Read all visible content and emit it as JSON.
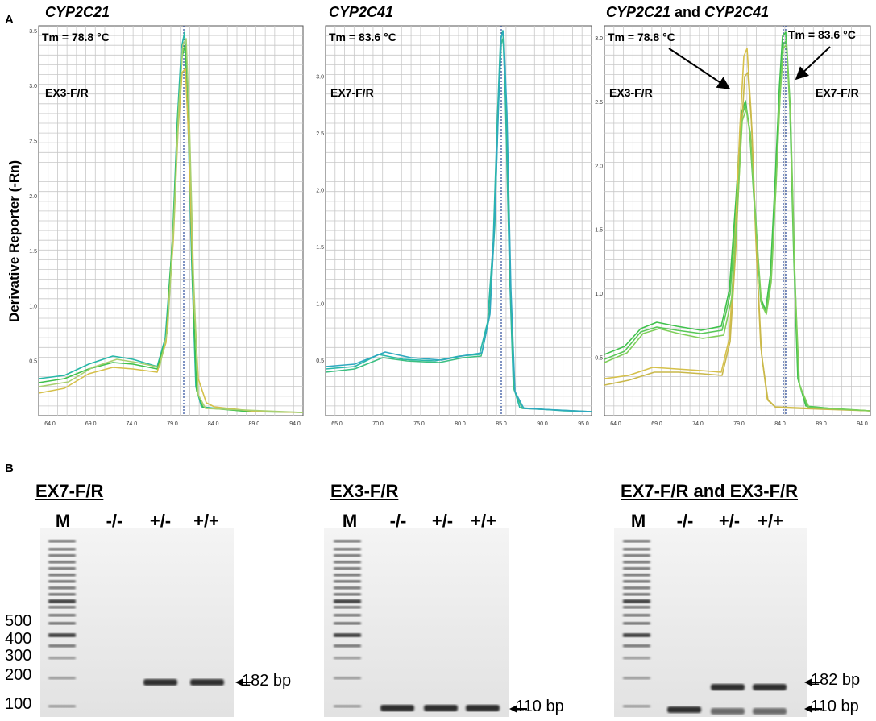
{
  "panel_a_label": "A",
  "panel_b_label": "B",
  "y_axis_label": "Derivative Reporter (-Rn)",
  "colors": {
    "teal": "#27b8a8",
    "green": "#3fc14c",
    "yellow": "#d5c04a",
    "vline": "#2a4a9a",
    "grid": "#c8c8c8"
  },
  "melt": [
    {
      "title": "CYP2C21",
      "tm_labels": [
        "Tm = 78.8 °C"
      ],
      "primer_left": "EX3-F/R",
      "primer_right": "",
      "x_ticks": [
        "64.0",
        "69.0",
        "74.0",
        "79.0",
        "84.0",
        "89.0",
        "94.0"
      ],
      "y_ticks": [
        "0.5",
        "1.0",
        "1.5",
        "2.0",
        "2.5",
        "3.0",
        "3.5"
      ]
    },
    {
      "title": "CYP2C41",
      "tm_labels": [
        "Tm = 83.6 °C"
      ],
      "primer_left": "EX7-F/R",
      "primer_right": "",
      "x_ticks": [
        "65.0",
        "70.0",
        "75.0",
        "80.0",
        "85.0",
        "90.0",
        "95.0"
      ],
      "y_ticks": [
        "0.5",
        "1.0",
        "1.5",
        "2.0",
        "2.5",
        "3.0"
      ]
    },
    {
      "title_a": "CYP2C21",
      "title_and": " and ",
      "title_b": "CYP2C41",
      "tm_labels": [
        "Tm = 78.8 °C",
        "Tm = 83.6 °C"
      ],
      "primer_left": "EX3-F/R",
      "primer_right": "EX7-F/R",
      "x_ticks": [
        "64.0",
        "69.0",
        "74.0",
        "79.0",
        "84.0",
        "89.0",
        "94.0"
      ],
      "y_ticks": [
        "0.5",
        "1.0",
        "1.5",
        "2.0",
        "2.5",
        "3.0"
      ]
    }
  ],
  "gels": [
    {
      "title": "EX7-F/R",
      "lanes": [
        "M",
        "-/-",
        "+/-",
        "+/+"
      ],
      "bp_labels": [
        "182 bp"
      ]
    },
    {
      "title": "EX3-F/R",
      "lanes": [
        "M",
        "-/-",
        "+/-",
        "+/+"
      ],
      "bp_labels": [
        "110 bp"
      ]
    },
    {
      "title": "EX7-F/R and EX3-F/R",
      "lanes": [
        "M",
        "-/-",
        "+/-",
        "+/+"
      ],
      "bp_labels": [
        "182 bp",
        "110 bp"
      ]
    }
  ],
  "ladder_labels": [
    "500",
    "400",
    "300",
    "200",
    "100"
  ]
}
